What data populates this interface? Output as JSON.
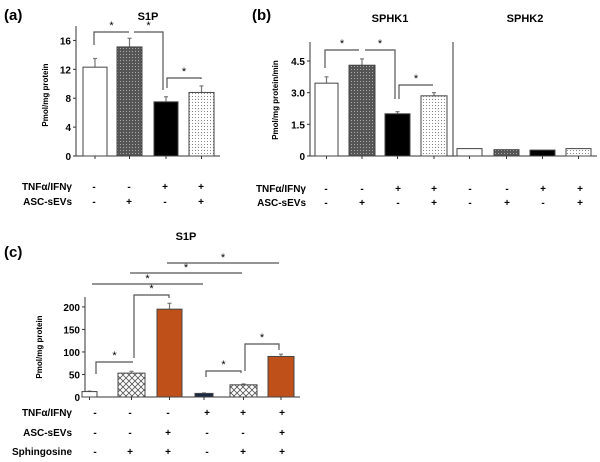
{
  "chart_data": [
    {
      "panel": "(a)",
      "type": "bar",
      "title": "S1P",
      "ylabel": "Pmol/mg protein",
      "ylim": [
        0,
        18
      ],
      "yticks": [
        "0",
        "4",
        "8",
        "12",
        "16"
      ],
      "ytick_values": [
        0,
        4,
        8,
        12,
        16
      ],
      "conditions": [
        {
          "label": "TNFα/IFNγ",
          "values": [
            "-",
            "-",
            "+",
            "+"
          ]
        },
        {
          "label": "ASC-sEVs",
          "values": [
            "-",
            "+",
            "-",
            "+"
          ]
        }
      ],
      "values": [
        12.3,
        15.1,
        7.5,
        8.8
      ],
      "errors": [
        1.2,
        1.2,
        0.7,
        0.9
      ],
      "fills": [
        "white",
        "dark-dotted",
        "black",
        "light-dotted"
      ],
      "significance": [
        {
          "pair": [
            0,
            1
          ],
          "label": "*"
        },
        {
          "pair": [
            1,
            2
          ],
          "label": "*"
        },
        {
          "pair": [
            2,
            3
          ],
          "label": "*"
        }
      ]
    },
    {
      "panel": "(b)",
      "type": "bar",
      "groups": [
        "SPHK1",
        "SPHK2"
      ],
      "ylabel": "Pmol/mg protein/min",
      "ylim": [
        0,
        5.4
      ],
      "yticks": [
        "0",
        "1.5",
        "3.0",
        "4.5"
      ],
      "ytick_values": [
        0,
        1.5,
        3.0,
        4.5
      ],
      "conditions": [
        {
          "label": "TNFα/IFNγ",
          "values": [
            "-",
            "-",
            "+",
            "+",
            "-",
            "-",
            "+",
            "+"
          ]
        },
        {
          "label": "ASC-sEVs",
          "values": [
            "-",
            "+",
            "-",
            "+",
            "-",
            "+",
            "-",
            "+"
          ]
        }
      ],
      "values": [
        3.45,
        4.3,
        2.0,
        2.85,
        0.35,
        0.3,
        0.28,
        0.35
      ],
      "errors": [
        0.3,
        0.3,
        0.1,
        0.15,
        0,
        0,
        0,
        0
      ],
      "fills": [
        "white",
        "dark-dotted",
        "black",
        "light-dotted",
        "white",
        "dark-dotted",
        "black",
        "light-dotted"
      ],
      "significance": [
        {
          "pair": [
            0,
            1
          ],
          "label": "*"
        },
        {
          "pair": [
            1,
            2
          ],
          "label": "*"
        },
        {
          "pair": [
            2,
            3
          ],
          "label": "*"
        }
      ]
    },
    {
      "panel": "(c)",
      "type": "bar",
      "title": "S1P",
      "ylabel": "Pmol/mg protein",
      "ylim": [
        0,
        222
      ],
      "yticks": [
        "0",
        "50",
        "100",
        "150",
        "200"
      ],
      "ytick_values": [
        0,
        50,
        100,
        150,
        200
      ],
      "conditions": [
        {
          "label": "TNFα/IFNγ",
          "values": [
            "-",
            "-",
            "-",
            "+",
            "+",
            "+"
          ]
        },
        {
          "label": "ASC-sEVs",
          "values": [
            "-",
            "-",
            "+",
            "-",
            "-",
            "+"
          ]
        },
        {
          "label": "Sphingosine",
          "values": [
            "-",
            "+",
            "+",
            "-",
            "+",
            "+"
          ]
        }
      ],
      "values": [
        12,
        53,
        195,
        8,
        27,
        90
      ],
      "errors": [
        1,
        4,
        13,
        1,
        2,
        5
      ],
      "fills": [
        "white",
        "crosshatch",
        "orange",
        "navy",
        "crosshatch",
        "orange"
      ],
      "colors": {
        "orange": "#c0501a",
        "navy": "#1c2a44"
      },
      "significance": [
        {
          "pair": [
            0,
            1
          ],
          "label": "*"
        },
        {
          "pair": [
            1,
            2
          ],
          "label": "*"
        },
        {
          "pair": [
            3,
            4
          ],
          "label": "*"
        },
        {
          "pair": [
            4,
            5
          ],
          "label": "*"
        },
        {
          "pair": [
            0,
            3
          ],
          "label": "*"
        },
        {
          "pair": [
            1,
            4
          ],
          "label": "*"
        },
        {
          "pair": [
            2,
            5
          ],
          "label": "*"
        }
      ]
    }
  ]
}
